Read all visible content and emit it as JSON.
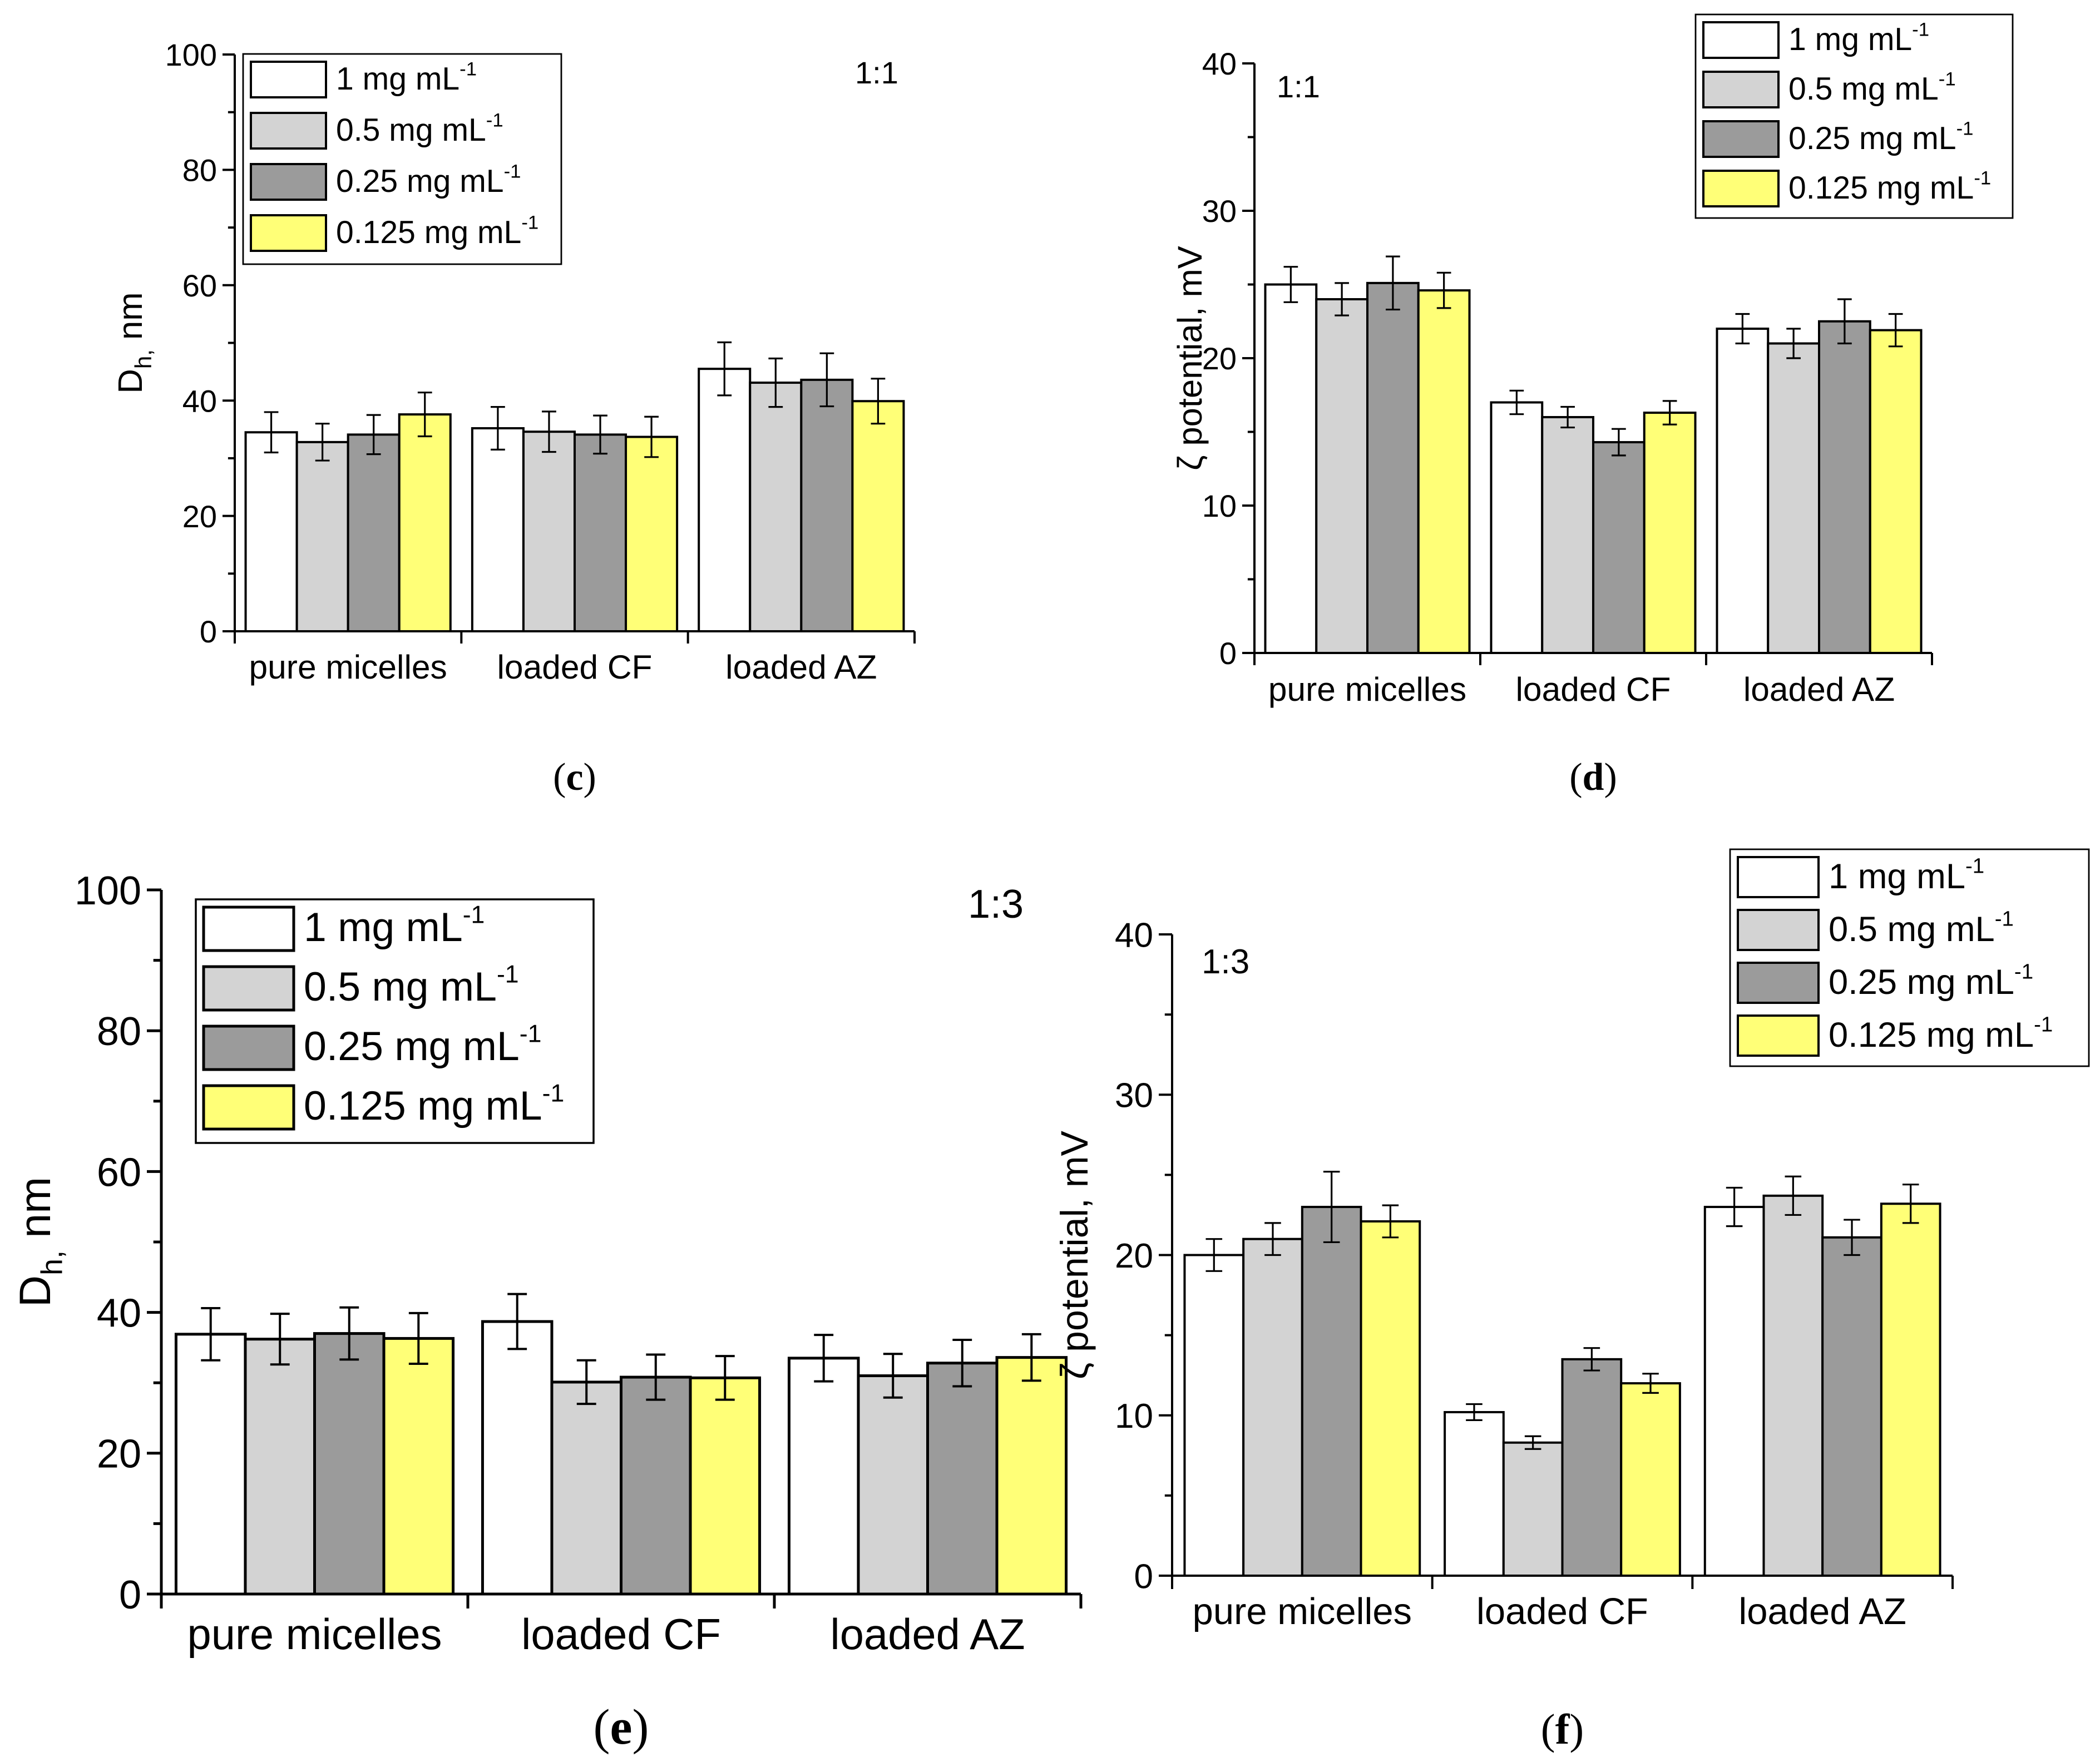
{
  "figure": {
    "panel_labels": [
      {
        "open": "(",
        "letter": "c",
        "close": ")"
      },
      {
        "open": "(",
        "letter": "d",
        "close": ")"
      },
      {
        "open": "(",
        "letter": "e",
        "close": ")"
      },
      {
        "open": "(",
        "letter": "f",
        "close": ")"
      }
    ]
  },
  "colors": {
    "1 mg mL-1": "#ffffff",
    "0.5 mg mL-1": "#d3d3d3",
    "0.25 mg mL-1": "#9b9b9b",
    "0.125 mg mL-1": "#ffff77"
  },
  "chart_data": [
    {
      "panel": "c",
      "type": "bar",
      "ratio_label": "1:1",
      "ylabel": {
        "main": "D",
        "sub": "h,",
        "unit": " nm"
      },
      "ylim": [
        0,
        100
      ],
      "yticks": [
        0,
        20,
        40,
        60,
        80,
        100
      ],
      "legend_position": "top-left",
      "categories": [
        "pure micelles",
        "loaded CF",
        "loaded AZ"
      ],
      "series": [
        {
          "name": "1 mg mL",
          "sup": "-1",
          "values": [
            34.5,
            35.2,
            45.5
          ],
          "errors": [
            3.5,
            3.7,
            4.6
          ]
        },
        {
          "name": "0.5 mg mL",
          "sup": "-1",
          "values": [
            32.8,
            34.6,
            43.1
          ],
          "errors": [
            3.2,
            3.5,
            4.2
          ]
        },
        {
          "name": "0.25 mg mL",
          "sup": "-1",
          "values": [
            34.1,
            34.1,
            43.6
          ],
          "errors": [
            3.4,
            3.3,
            4.6
          ]
        },
        {
          "name": "0.125 mg mL",
          "sup": "-1",
          "values": [
            37.6,
            33.7,
            39.9
          ],
          "errors": [
            3.8,
            3.5,
            3.9
          ]
        }
      ]
    },
    {
      "panel": "d",
      "type": "bar",
      "ratio_label": "1:1",
      "ylabel": {
        "main": "ζ potential, mV"
      },
      "ylim": [
        0,
        40
      ],
      "yticks": [
        0,
        10,
        20,
        30,
        40
      ],
      "legend_position": "top-right",
      "categories": [
        "pure micelles",
        "loaded CF",
        "loaded AZ"
      ],
      "series": [
        {
          "name": "1 mg mL",
          "sup": "-1",
          "values": [
            25.0,
            17.0,
            22.0
          ],
          "errors": [
            1.2,
            0.8,
            1.0
          ]
        },
        {
          "name": "0.5 mg mL",
          "sup": "-1",
          "values": [
            24.0,
            16.0,
            21.0
          ],
          "errors": [
            1.1,
            0.7,
            1.0
          ]
        },
        {
          "name": "0.25 mg mL",
          "sup": "-1",
          "values": [
            25.1,
            14.3,
            22.5
          ],
          "errors": [
            1.8,
            0.9,
            1.5
          ]
        },
        {
          "name": "0.125 mg mL",
          "sup": "-1",
          "values": [
            24.6,
            16.3,
            21.9
          ],
          "errors": [
            1.2,
            0.8,
            1.1
          ]
        }
      ]
    },
    {
      "panel": "e",
      "type": "bar",
      "ratio_label": "1:3",
      "ylabel": {
        "main": "D",
        "sub": "h,",
        "unit": " nm"
      },
      "ylim": [
        0,
        100
      ],
      "yticks": [
        0,
        20,
        40,
        60,
        80,
        100
      ],
      "legend_position": "top-left",
      "categories": [
        "pure micelles",
        "loaded CF",
        "loaded AZ"
      ],
      "series": [
        {
          "name": "1 mg mL",
          "sup": "-1",
          "values": [
            36.9,
            38.7,
            33.5
          ],
          "errors": [
            3.7,
            3.9,
            3.3
          ]
        },
        {
          "name": "0.5 mg mL",
          "sup": "-1",
          "values": [
            36.2,
            30.1,
            31.0
          ],
          "errors": [
            3.6,
            3.1,
            3.1
          ]
        },
        {
          "name": "0.25 mg mL",
          "sup": "-1",
          "values": [
            37.0,
            30.8,
            32.8
          ],
          "errors": [
            3.7,
            3.2,
            3.3
          ]
        },
        {
          "name": "0.125 mg mL",
          "sup": "-1",
          "values": [
            36.3,
            30.7,
            33.6
          ],
          "errors": [
            3.6,
            3.1,
            3.3
          ]
        }
      ]
    },
    {
      "panel": "f",
      "type": "bar",
      "ratio_label": "1:3",
      "ylabel": {
        "main": "ζ potential, mV"
      },
      "ylim": [
        0,
        40
      ],
      "yticks": [
        0,
        10,
        20,
        30,
        40
      ],
      "legend_position": "top-right",
      "categories": [
        "pure micelles",
        "loaded CF",
        "loaded AZ"
      ],
      "series": [
        {
          "name": "1 mg mL",
          "sup": "-1",
          "values": [
            20.0,
            10.2,
            23.0
          ],
          "errors": [
            1.0,
            0.5,
            1.2
          ]
        },
        {
          "name": "0.5 mg mL",
          "sup": "-1",
          "values": [
            21.0,
            8.3,
            23.7
          ],
          "errors": [
            1.0,
            0.4,
            1.2
          ]
        },
        {
          "name": "0.25 mg mL",
          "sup": "-1",
          "values": [
            23.0,
            13.5,
            21.1
          ],
          "errors": [
            2.2,
            0.7,
            1.1
          ]
        },
        {
          "name": "0.125 mg mL",
          "sup": "-1",
          "values": [
            22.1,
            12.0,
            23.2
          ],
          "errors": [
            1.0,
            0.6,
            1.2
          ]
        }
      ]
    }
  ]
}
